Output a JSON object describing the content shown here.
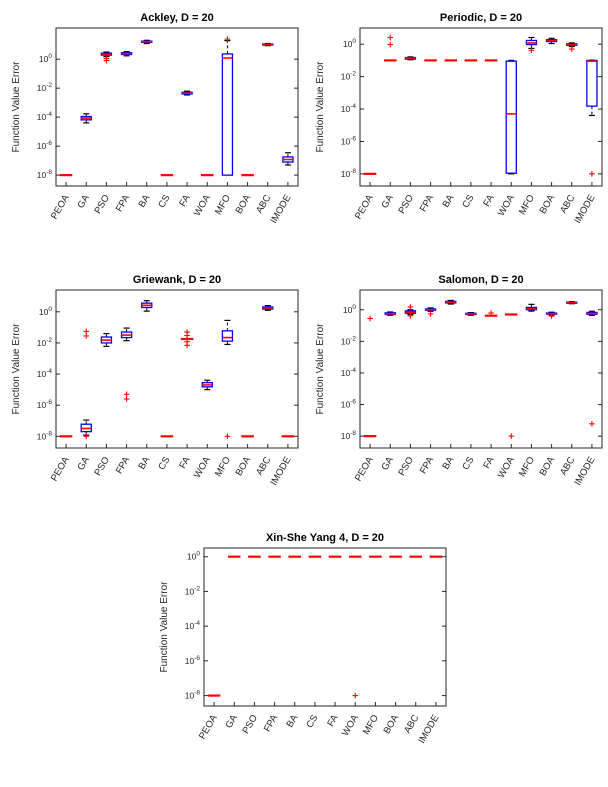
{
  "figure": {
    "background": "#ffffff",
    "style": {
      "box_color": "#0000ff",
      "median_color": "#ff0000",
      "whisker_color": "#000000",
      "outlier_color": "#ff0000",
      "axis_color": "#262626"
    }
  },
  "chart_data": [
    {
      "type": "boxplot",
      "title": "Ackley, D = 20",
      "ylabel": "Function Value Error",
      "yscale": "log",
      "ylim_log": [
        -8.75,
        2.15
      ],
      "ytick_exponents": [
        0,
        -2,
        -4,
        -6,
        -8
      ],
      "grid": false,
      "legend": "none",
      "categories": [
        "PEOA",
        "GA",
        "PSO",
        "FPA",
        "BA",
        "CS",
        "FA",
        "WOA",
        "MFO",
        "BOA",
        "ABC",
        "IMODE"
      ],
      "boxes": [
        {
          "algo": "PEOA",
          "median": 1e-08
        },
        {
          "algo": "GA",
          "whisker_low": 4e-05,
          "q1": 6.5e-05,
          "median": 8.5e-05,
          "q3": 0.00011,
          "whisker_high": 0.00017
        },
        {
          "algo": "PSO",
          "whisker_low": 1.5,
          "q1": 1.9,
          "median": 2.2,
          "q3": 2.6,
          "whisker_high": 3.1,
          "outliers": [
            0.8,
            1.1
          ]
        },
        {
          "algo": "FPA",
          "whisker_low": 1.7,
          "q1": 2.1,
          "median": 2.4,
          "q3": 2.8,
          "whisker_high": 3.3
        },
        {
          "algo": "BA",
          "whisker_low": 12,
          "q1": 14.5,
          "median": 16,
          "q3": 17.5,
          "whisker_high": 20
        },
        {
          "algo": "CS",
          "median": 1e-08
        },
        {
          "algo": "FA",
          "whisker_low": 0.0034,
          "q1": 0.004,
          "median": 0.0045,
          "q3": 0.0052,
          "whisker_high": 0.0062
        },
        {
          "algo": "WOA",
          "median": 1e-08
        },
        {
          "algo": "MFO",
          "whisker_low": 1e-08,
          "q1": 1e-08,
          "median": 1.2,
          "q3": 2.3,
          "whisker_high": 19,
          "outliers": [
            24
          ]
        },
        {
          "algo": "BOA",
          "median": 1e-08
        },
        {
          "algo": "ABC",
          "whisker_low": 8.5,
          "q1": 9.5,
          "median": 10.2,
          "q3": 11,
          "whisker_high": 12
        },
        {
          "algo": "IMODE",
          "whisker_low": 5e-08,
          "q1": 8e-08,
          "median": 1.2e-07,
          "q3": 1.8e-07,
          "whisker_high": 3.5e-07
        }
      ]
    },
    {
      "type": "boxplot",
      "title": "Periodic, D = 20",
      "ylabel": "Function Value Error",
      "yscale": "log",
      "ylim_log": [
        -8.75,
        1.0
      ],
      "ytick_exponents": [
        0,
        -2,
        -4,
        -6,
        -8
      ],
      "grid": false,
      "legend": "none",
      "categories": [
        "PEOA",
        "GA",
        "PSO",
        "FPA",
        "BA",
        "CS",
        "FA",
        "WOA",
        "MFO",
        "BOA",
        "ABC",
        "IMODE"
      ],
      "boxes": [
        {
          "algo": "PEOA",
          "median": 1e-08
        },
        {
          "algo": "GA",
          "median": 0.1,
          "outliers": [
            2.6,
            0.95
          ]
        },
        {
          "algo": "PSO",
          "whisker_low": 0.11,
          "q1": 0.12,
          "median": 0.135,
          "q3": 0.15,
          "whisker_high": 0.165
        },
        {
          "algo": "FPA",
          "median": 0.1
        },
        {
          "algo": "BA",
          "median": 0.1
        },
        {
          "algo": "CS",
          "median": 0.1
        },
        {
          "algo": "FA",
          "median": 0.1
        },
        {
          "algo": "WOA",
          "whisker_low": 1e-08,
          "q1": 1.1e-08,
          "median": 5e-05,
          "q3": 0.09,
          "whisker_high": 0.1
        },
        {
          "algo": "MFO",
          "whisker_low": 0.55,
          "q1": 0.95,
          "median": 1.2,
          "q3": 1.7,
          "whisker_high": 2.6,
          "outliers": [
            0.42
          ]
        },
        {
          "algo": "BOA",
          "whisker_low": 1.1,
          "q1": 1.45,
          "median": 1.65,
          "q3": 1.9,
          "whisker_high": 2.3
        },
        {
          "algo": "ABC",
          "whisker_low": 0.72,
          "q1": 0.85,
          "median": 0.95,
          "q3": 1.05,
          "whisker_high": 1.2,
          "outliers": [
            0.5
          ]
        },
        {
          "algo": "IMODE",
          "whisker_low": 4e-05,
          "q1": 0.00015,
          "median": 0.09,
          "q3": 0.1,
          "whisker_high": 0.105,
          "outliers": [
            1e-08
          ]
        }
      ]
    },
    {
      "type": "boxplot",
      "title": "Griewank, D = 20",
      "ylabel": "Function Value Error",
      "yscale": "log",
      "ylim_log": [
        -8.75,
        1.4
      ],
      "ytick_exponents": [
        0,
        -2,
        -4,
        -6,
        -8
      ],
      "grid": false,
      "legend": "none",
      "categories": [
        "PEOA",
        "GA",
        "PSO",
        "FPA",
        "BA",
        "CS",
        "FA",
        "WOA",
        "MFO",
        "BOA",
        "ABC",
        "IMODE"
      ],
      "boxes": [
        {
          "algo": "PEOA",
          "median": 1e-08
        },
        {
          "algo": "GA",
          "whisker_low": 1.2e-08,
          "q1": 2e-08,
          "median": 3.2e-08,
          "q3": 6e-08,
          "whisker_high": 1.1e-07,
          "outliers": [
            0.055,
            0.028,
            1e-08
          ]
        },
        {
          "algo": "PSO",
          "whisker_low": 0.006,
          "q1": 0.01,
          "median": 0.015,
          "q3": 0.024,
          "whisker_high": 0.04
        },
        {
          "algo": "FPA",
          "whisker_low": 0.014,
          "q1": 0.022,
          "median": 0.032,
          "q3": 0.05,
          "whisker_high": 0.09,
          "outliers": [
            5e-06,
            2.5e-06
          ]
        },
        {
          "algo": "BA",
          "whisker_low": 1.1,
          "q1": 1.9,
          "median": 2.6,
          "q3": 3.6,
          "whisker_high": 5.2
        },
        {
          "algo": "CS",
          "median": 1e-08
        },
        {
          "algo": "FA",
          "median": 0.018,
          "outliers": [
            0.007,
            0.012,
            0.03,
            0.05
          ]
        },
        {
          "algo": "WOA",
          "whisker_low": 1e-05,
          "q1": 1.5e-05,
          "median": 2e-05,
          "q3": 2.8e-05,
          "whisker_high": 4e-05
        },
        {
          "algo": "MFO",
          "whisker_low": 0.008,
          "q1": 0.013,
          "median": 0.022,
          "q3": 0.06,
          "whisker_high": 0.28,
          "outliers": [
            1e-08
          ]
        },
        {
          "algo": "BOA",
          "median": 1e-08
        },
        {
          "algo": "ABC",
          "whisker_low": 1.25,
          "q1": 1.5,
          "median": 1.75,
          "q3": 2.05,
          "whisker_high": 2.5
        },
        {
          "algo": "IMODE",
          "median": 1e-08
        }
      ]
    },
    {
      "type": "boxplot",
      "title": "Salomon, D = 20",
      "ylabel": "Function Value Error",
      "yscale": "log",
      "ylim_log": [
        -8.75,
        1.25
      ],
      "ytick_exponents": [
        0,
        -2,
        -4,
        -6,
        -8
      ],
      "grid": false,
      "legend": "none",
      "categories": [
        "PEOA",
        "GA",
        "PSO",
        "FPA",
        "BA",
        "CS",
        "FA",
        "WOA",
        "MFO",
        "BOA",
        "ABC",
        "IMODE"
      ],
      "boxes": [
        {
          "algo": "PEOA",
          "median": 1e-08,
          "outliers": [
            0.28
          ]
        },
        {
          "algo": "GA",
          "whisker_low": 0.45,
          "q1": 0.5,
          "median": 0.56,
          "q3": 0.64,
          "whisker_high": 0.72
        },
        {
          "algo": "PSO",
          "whisker_low": 0.5,
          "q1": 0.6,
          "median": 0.7,
          "q3": 0.85,
          "whisker_high": 1.0,
          "outliers": [
            1.5,
            0.42
          ]
        },
        {
          "algo": "FPA",
          "whisker_low": 0.8,
          "q1": 0.92,
          "median": 1.0,
          "q3": 1.12,
          "whisker_high": 1.3,
          "outliers": [
            0.55
          ]
        },
        {
          "algo": "BA",
          "whisker_low": 2.3,
          "q1": 2.7,
          "median": 3.0,
          "q3": 3.4,
          "whisker_high": 3.9
        },
        {
          "algo": "CS",
          "whisker_low": 0.45,
          "q1": 0.5,
          "median": 0.55,
          "q3": 0.6,
          "whisker_high": 0.66
        },
        {
          "algo": "FA",
          "median": 0.42,
          "outliers": [
            0.62
          ]
        },
        {
          "algo": "WOA",
          "median": 0.5,
          "outliers": [
            1e-08
          ]
        },
        {
          "algo": "MFO",
          "whisker_low": 0.82,
          "q1": 1.0,
          "median": 1.15,
          "q3": 1.4,
          "whisker_high": 2.2
        },
        {
          "algo": "BOA",
          "whisker_low": 0.46,
          "q1": 0.52,
          "median": 0.56,
          "q3": 0.62,
          "whisker_high": 0.7,
          "outliers": [
            0.4
          ]
        },
        {
          "algo": "ABC",
          "whisker_low": 2.4,
          "q1": 2.65,
          "median": 2.8,
          "q3": 3.0,
          "whisker_high": 3.25
        },
        {
          "algo": "IMODE",
          "whisker_low": 0.44,
          "q1": 0.52,
          "median": 0.58,
          "q3": 0.68,
          "whisker_high": 0.8,
          "outliers": [
            6e-08
          ]
        }
      ]
    },
    {
      "type": "boxplot",
      "title": "Xin-She Yang 4, D = 20",
      "ylabel": "Function Value Error",
      "yscale": "log",
      "ylim_log": [
        -8.6,
        0.5
      ],
      "ytick_exponents": [
        0,
        -2,
        -4,
        -6,
        -8
      ],
      "grid": false,
      "legend": "none",
      "categories": [
        "PEOA",
        "GA",
        "PSO",
        "FPA",
        "BA",
        "CS",
        "FA",
        "WOA",
        "MFO",
        "BOA",
        "ABC",
        "IMODE"
      ],
      "boxes": [
        {
          "algo": "PEOA",
          "median": 1e-08
        },
        {
          "algo": "GA",
          "median": 1.0
        },
        {
          "algo": "PSO",
          "median": 1.0
        },
        {
          "algo": "FPA",
          "median": 1.0
        },
        {
          "algo": "BA",
          "median": 1.0
        },
        {
          "algo": "CS",
          "median": 1.0
        },
        {
          "algo": "FA",
          "median": 1.0
        },
        {
          "algo": "WOA",
          "median": 1.0,
          "outliers": [
            1e-08
          ]
        },
        {
          "algo": "MFO",
          "median": 1.0
        },
        {
          "algo": "BOA",
          "median": 1.0
        },
        {
          "algo": "ABC",
          "median": 1.0
        },
        {
          "algo": "IMODE",
          "median": 1.0
        }
      ]
    }
  ]
}
